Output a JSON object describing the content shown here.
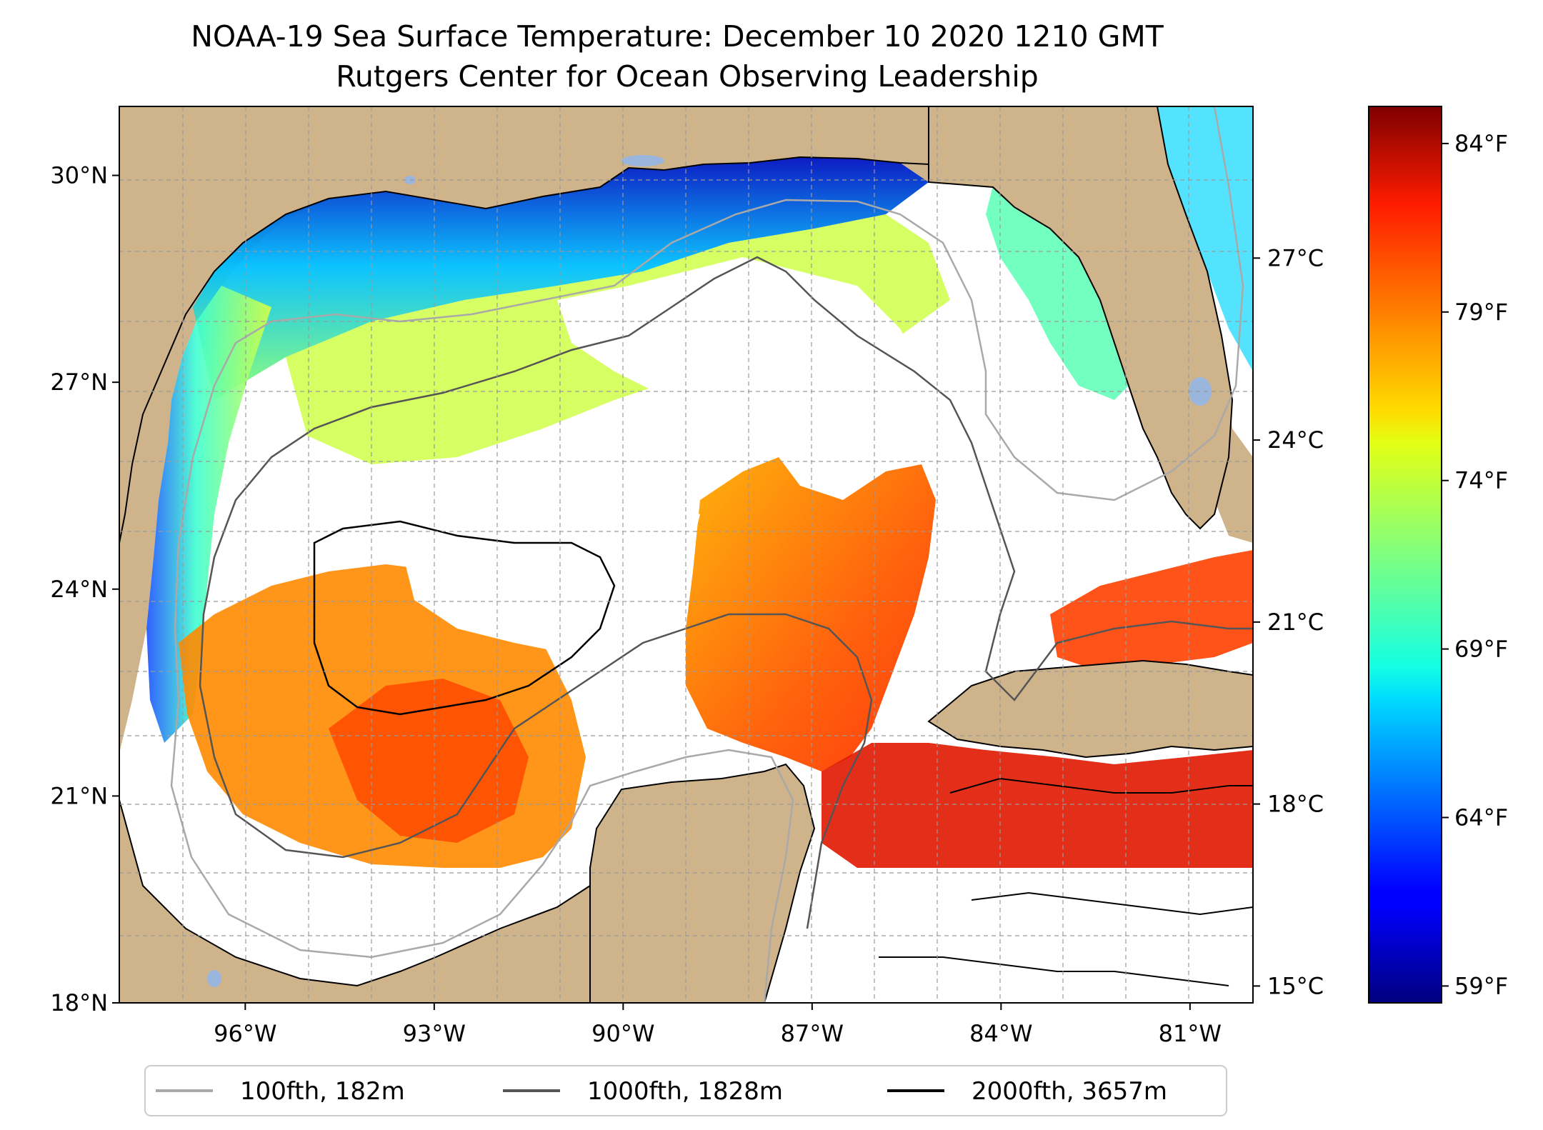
{
  "title": {
    "line1": "NOAA-19 Sea Surface Temperature: December 10 2020 1210 GMT",
    "line2": "Rutgers Center for Ocean Observing Leadership"
  },
  "map": {
    "region": "Gulf of Mexico",
    "lon_range": [
      -98.0,
      -80.0
    ],
    "lat_range": [
      18.0,
      31.0
    ],
    "land_color": "#cfb38b",
    "no_data_color": "#ffffff",
    "lakes_color": "#9bb6dc",
    "xticks": [
      {
        "lon": -96,
        "label": "96°W"
      },
      {
        "lon": -93,
        "label": "93°W"
      },
      {
        "lon": -90,
        "label": "90°W"
      },
      {
        "lon": -87,
        "label": "87°W"
      },
      {
        "lon": -84,
        "label": "84°W"
      },
      {
        "lon": -81,
        "label": "81°W"
      }
    ],
    "yticks": [
      {
        "lat": 18,
        "label": "18°N"
      },
      {
        "lat": 21,
        "label": "21°N"
      },
      {
        "lat": 24,
        "label": "24°N"
      },
      {
        "lat": 27,
        "label": "27°N"
      },
      {
        "lat": 30,
        "label": "30°N"
      }
    ]
  },
  "colorbar": {
    "colormap": "jet",
    "celsius_ticks": [
      {
        "value": 15,
        "label": "15°C"
      },
      {
        "value": 18,
        "label": "18°C"
      },
      {
        "value": 21,
        "label": "21°C"
      },
      {
        "value": 24,
        "label": "24°C"
      },
      {
        "value": 27,
        "label": "27°C"
      }
    ],
    "fahrenheit_ticks": [
      {
        "value": 59,
        "label": "59°F"
      },
      {
        "value": 64,
        "label": "64°F"
      },
      {
        "value": 69,
        "label": "69°F"
      },
      {
        "value": 74,
        "label": "74°F"
      },
      {
        "value": 79,
        "label": "79°F"
      },
      {
        "value": 84,
        "label": "84°F"
      }
    ]
  },
  "legend": [
    {
      "label": "100fth, 182m",
      "color": "#a9a9a9"
    },
    {
      "label": "1000fth, 1828m",
      "color": "#555555"
    },
    {
      "label": "2000fth, 3657m",
      "color": "#000000"
    }
  ]
}
